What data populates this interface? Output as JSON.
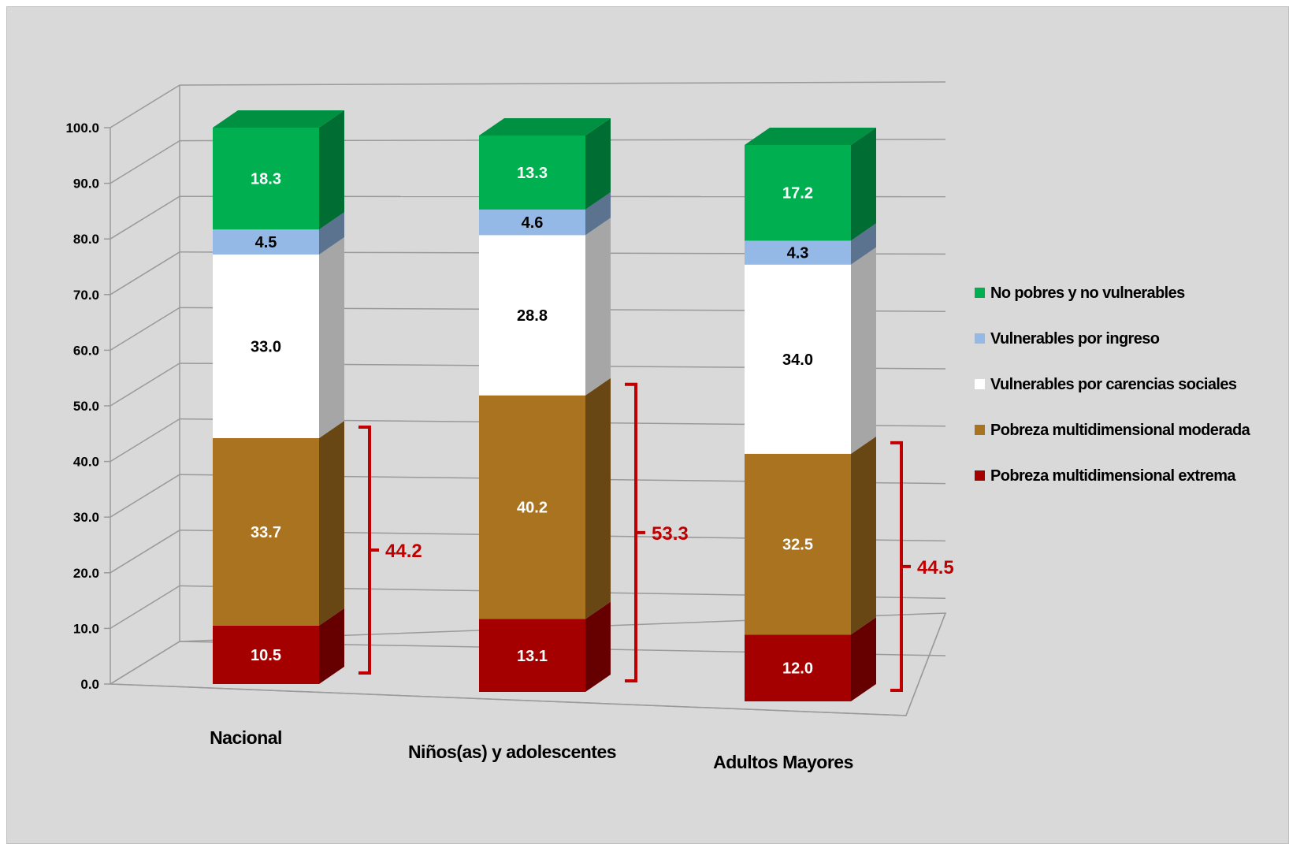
{
  "chart_data": {
    "type": "bar",
    "stacked": true,
    "three_d": true,
    "categories": [
      "Nacional",
      "Niños(as) y adolescentes",
      "Adultos Mayores"
    ],
    "series": [
      {
        "name": "Pobreza multidimensional extrema",
        "values": [
          10.5,
          13.1,
          12.0
        ],
        "color": "#a50000",
        "label_color": "#ffffff"
      },
      {
        "name": "Pobreza multidimensional moderada",
        "values": [
          33.7,
          40.2,
          32.5
        ],
        "color": "#a97320",
        "label_color": "#ffffff"
      },
      {
        "name": "Vulnerables por carencias sociales",
        "values": [
          33.0,
          28.8,
          34.0
        ],
        "color": "#ffffff",
        "label_color": "#000000"
      },
      {
        "name": "Vulnerables por ingreso",
        "values": [
          4.5,
          4.6,
          4.3
        ],
        "color": "#95b9e6",
        "label_color": "#000000"
      },
      {
        "name": "No pobres y no vulnerables",
        "values": [
          18.3,
          13.3,
          17.2
        ],
        "color": "#00b050",
        "label_color": "#ffffff"
      }
    ],
    "brackets": [
      {
        "label": "44.2",
        "value": 44.2
      },
      {
        "label": "53.3",
        "value": 53.3
      },
      {
        "label": "44.5",
        "value": 44.5
      }
    ],
    "bracket_color": "#c00000",
    "ylim": [
      0,
      100
    ],
    "yticks": [
      "0.0",
      "10.0",
      "20.0",
      "30.0",
      "40.0",
      "50.0",
      "60.0",
      "70.0",
      "80.0",
      "90.0",
      "100.0"
    ],
    "legend_order": [
      "No pobres y no vulnerables",
      "Vulnerables por ingreso",
      "Vulnerables por carencias sociales",
      "Pobreza multidimensional moderada",
      "Pobreza multidimensional extrema"
    ],
    "legend_position": "right",
    "grid": true
  }
}
